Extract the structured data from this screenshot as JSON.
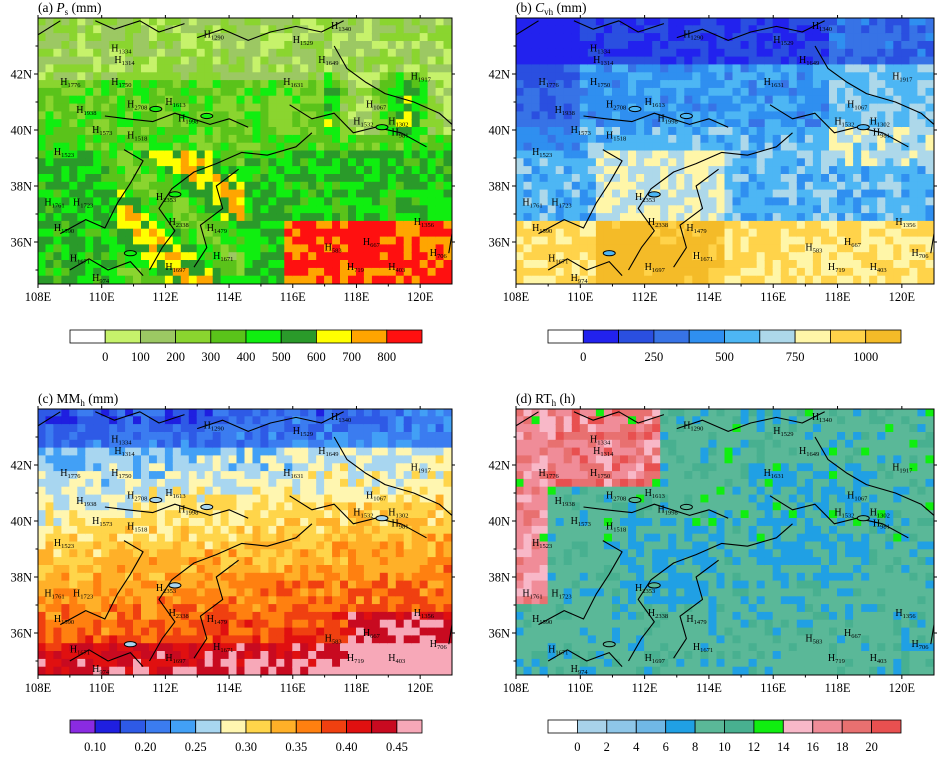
{
  "figure": {
    "panels": [
      {
        "id": "a",
        "title": {
          "prefix": "(a) ",
          "main": "P",
          "sub": "s",
          "suffix": " (mm)",
          "italic": true
        },
        "base_color": "#3fbf2c",
        "legend": {
          "colors": [
            "#ffffff",
            "#c6f26b",
            "#9cc863",
            "#8ad52f",
            "#5ac31a",
            "#10ee10",
            "#2a9a2a",
            "#ffff00",
            "#ffa500",
            "#ff1010"
          ],
          "labels": [
            "0",
            "100",
            "200",
            "300",
            "400",
            "500",
            "600",
            "700",
            "800"
          ],
          "label_offset": 1
        }
      },
      {
        "id": "b",
        "title": {
          "prefix": "(b) ",
          "main": "C",
          "sub": "vh",
          "suffix": " (mm)",
          "italic": true
        },
        "base_color": "#5aa0ee",
        "legend": {
          "colors": [
            "#ffffff",
            "#2222ee",
            "#2a4fe0",
            "#3773e6",
            "#2f8ff0",
            "#4db6f4",
            "#add8ea",
            "#fff6a8",
            "#ffd34a",
            "#f4bb28"
          ],
          "labels": [
            "0",
            "250",
            "500",
            "750",
            "1000"
          ],
          "label_offset": 1,
          "label_step": 2
        }
      },
      {
        "id": "c",
        "title": {
          "prefix": "(c) ",
          "main": "MM",
          "sub": "h",
          "suffix": " (mm)",
          "italic": false
        },
        "base_color": "#f2c04a",
        "legend": {
          "colors": [
            "#8a2be2",
            "#1f1fe0",
            "#2e5ae6",
            "#3b7cf0",
            "#42a0f6",
            "#a8d6f0",
            "#fff6b0",
            "#ffd54a",
            "#ffb028",
            "#ff8010",
            "#f04010",
            "#e01010",
            "#c80a20",
            "#f7a8b8"
          ],
          "labels": [
            "0.10",
            "0.20",
            "0.25",
            "0.30",
            "0.35",
            "0.40",
            "0.45"
          ],
          "label_offset": 1,
          "label_step": 2
        }
      },
      {
        "id": "d",
        "title": {
          "prefix": "(d) ",
          "main": "RT",
          "sub": "h",
          "suffix": " (h)",
          "italic": false
        },
        "base_color": "#5ab898",
        "legend": {
          "colors": [
            "#ffffff",
            "#a8d2ea",
            "#8ec6e8",
            "#70b8e6",
            "#20a0e4",
            "#5ab898",
            "#48b090",
            "#10ee10",
            "#f8b8c8",
            "#f08c98",
            "#e87070",
            "#e85050"
          ],
          "labels": [
            "0",
            "2",
            "4",
            "6",
            "8",
            "10",
            "12",
            "14",
            "16",
            "18",
            "20"
          ],
          "label_offset": 1
        }
      }
    ],
    "station_labels": [
      {
        "n": "1334",
        "lon": 110.3,
        "lat": 42.8
      },
      {
        "n": "1314",
        "lon": 110.4,
        "lat": 42.4
      },
      {
        "n": "1290",
        "lon": 113.2,
        "lat": 43.3
      },
      {
        "n": "1529",
        "lon": 116.0,
        "lat": 43.1
      },
      {
        "n": "1340",
        "lon": 117.2,
        "lat": 43.6
      },
      {
        "n": "1649",
        "lon": 116.8,
        "lat": 42.4
      },
      {
        "n": "1776",
        "lon": 108.7,
        "lat": 41.6
      },
      {
        "n": "1750",
        "lon": 110.3,
        "lat": 41.6
      },
      {
        "n": "1631",
        "lon": 115.7,
        "lat": 41.6
      },
      {
        "n": "1917",
        "lon": 119.7,
        "lat": 41.8
      },
      {
        "n": "1938",
        "lon": 109.2,
        "lat": 40.6
      },
      {
        "n": "2708",
        "lon": 110.8,
        "lat": 40.8
      },
      {
        "n": "1613",
        "lon": 112.0,
        "lat": 40.9
      },
      {
        "n": "1998",
        "lon": 112.4,
        "lat": 40.3
      },
      {
        "n": "1067",
        "lon": 118.3,
        "lat": 40.8
      },
      {
        "n": "1532",
        "lon": 117.9,
        "lat": 40.2
      },
      {
        "n": "1302",
        "lon": 119.0,
        "lat": 40.2
      },
      {
        "n": "981",
        "lon": 119.1,
        "lat": 39.8
      },
      {
        "n": "1573",
        "lon": 109.7,
        "lat": 39.9
      },
      {
        "n": "1518",
        "lon": 110.8,
        "lat": 39.7
      },
      {
        "n": "1523",
        "lon": 108.5,
        "lat": 39.1
      },
      {
        "n": "1761",
        "lon": 108.2,
        "lat": 37.3
      },
      {
        "n": "1723",
        "lon": 109.1,
        "lat": 37.3
      },
      {
        "n": "2353",
        "lon": 111.7,
        "lat": 37.5
      },
      {
        "n": "1590",
        "lon": 108.5,
        "lat": 36.4
      },
      {
        "n": "2338",
        "lon": 112.1,
        "lat": 36.6
      },
      {
        "n": "1479",
        "lon": 113.3,
        "lat": 36.4
      },
      {
        "n": "583",
        "lon": 117.0,
        "lat": 35.7
      },
      {
        "n": "667",
        "lon": 118.2,
        "lat": 35.9
      },
      {
        "n": "1356",
        "lon": 119.8,
        "lat": 36.6
      },
      {
        "n": "1671",
        "lon": 113.5,
        "lat": 35.4
      },
      {
        "n": "1671",
        "lon": 109.0,
        "lat": 35.3
      },
      {
        "n": "719",
        "lon": 117.7,
        "lat": 35.0
      },
      {
        "n": "403",
        "lon": 119.0,
        "lat": 35.0
      },
      {
        "n": "706",
        "lon": 120.3,
        "lat": 35.5
      },
      {
        "n": "1697",
        "lon": 112.0,
        "lat": 35.0
      },
      {
        "n": "974",
        "lon": 109.7,
        "lat": 34.6
      }
    ]
  },
  "chart_data": [
    {
      "type": "heatmap",
      "panel": "a",
      "title": "(a) Ps (mm)",
      "xlim": [
        108,
        121
      ],
      "ylim": [
        34.5,
        44
      ],
      "x_ticks": [
        "108E",
        "110E",
        "112E",
        "114E",
        "116E",
        "118E",
        "120E"
      ],
      "y_ticks": [
        "36N",
        "38N",
        "40N",
        "42N"
      ],
      "colorbar": [
        "0",
        "100",
        "200",
        "300",
        "400",
        "500",
        "600",
        "700",
        "800"
      ],
      "legend_position": "bottom"
    },
    {
      "type": "heatmap",
      "panel": "b",
      "title": "(b) Cvh (mm)",
      "xlim": [
        108,
        121
      ],
      "ylim": [
        34.5,
        44
      ],
      "x_ticks": [
        "108E",
        "110E",
        "112E",
        "114E",
        "116E",
        "118E",
        "120E"
      ],
      "y_ticks": [
        "36N",
        "38N",
        "40N",
        "42N"
      ],
      "colorbar": [
        "0",
        "250",
        "500",
        "750",
        "1000"
      ],
      "legend_position": "bottom"
    },
    {
      "type": "heatmap",
      "panel": "c",
      "title": "(c) MMh (mm)",
      "xlim": [
        108,
        121
      ],
      "ylim": [
        34.5,
        44
      ],
      "x_ticks": [
        "108E",
        "110E",
        "112E",
        "114E",
        "116E",
        "118E",
        "120E"
      ],
      "y_ticks": [
        "36N",
        "38N",
        "40N",
        "42N"
      ],
      "colorbar": [
        "0.10",
        "0.20",
        "0.25",
        "0.30",
        "0.35",
        "0.40",
        "0.45"
      ],
      "legend_position": "bottom"
    },
    {
      "type": "heatmap",
      "panel": "d",
      "title": "(d) RTh (h)",
      "xlim": [
        108,
        121
      ],
      "ylim": [
        34.5,
        44
      ],
      "x_ticks": [
        "108E",
        "110E",
        "112E",
        "114E",
        "116E",
        "118E",
        "120E"
      ],
      "y_ticks": [
        "36N",
        "38N",
        "40N",
        "42N"
      ],
      "colorbar": [
        "0",
        "2",
        "4",
        "6",
        "8",
        "10",
        "12",
        "14",
        "16",
        "18",
        "20"
      ],
      "legend_position": "bottom"
    }
  ]
}
